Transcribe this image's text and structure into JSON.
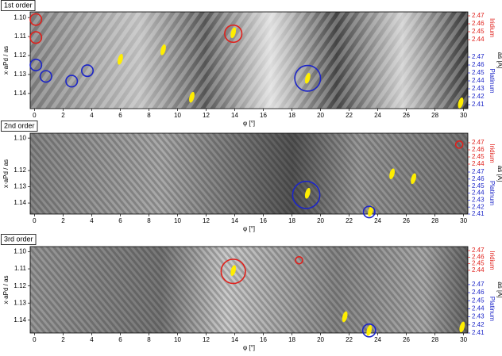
{
  "chart_data": [
    {
      "type": "heatmap",
      "title": "1st order",
      "xlabel": "φ [°]",
      "ylabel": "x·aPd / as",
      "y2label": "as [Å]",
      "xlim": [
        -0.3,
        30.3
      ],
      "xticks": [
        0,
        2,
        4,
        6,
        8,
        10,
        12,
        14,
        16,
        18,
        20,
        22,
        24,
        26,
        28,
        30
      ],
      "ylim": [
        1.148,
        1.097
      ],
      "yticks": [
        {
          "value": 1.1,
          "label": "1.10"
        },
        1.11,
        1.12,
        1.13,
        1.14
      ],
      "right_axes": [
        {
          "name": "Iridium",
          "color": "#e0201b",
          "lim": [
            2.353,
            2.475
          ],
          "ticks": [
            2.47,
            2.46,
            2.45,
            2.44
          ]
        },
        {
          "name": "Platinum",
          "color": "#1c25c8",
          "lim": [
            2.405,
            2.527
          ],
          "ticks": [
            2.47,
            2.46,
            2.45,
            2.44,
            2.43,
            2.42,
            2.41
          ]
        }
      ],
      "markers": [
        {
          "color": "#e0201b",
          "x": 0.1,
          "y": 1.101,
          "size": 0.4
        },
        {
          "color": "#e0201b",
          "x": 0.1,
          "y": 1.1105,
          "size": 0.4
        },
        {
          "color": "#e0201b",
          "x": 13.9,
          "y": 1.1085,
          "size": 0.6
        },
        {
          "color": "#1c25c8",
          "x": 0.1,
          "y": 1.125,
          "size": 0.4
        },
        {
          "color": "#1c25c8",
          "x": 0.8,
          "y": 1.131,
          "size": 0.4
        },
        {
          "color": "#1c25c8",
          "x": 2.6,
          "y": 1.1335,
          "size": 0.4
        },
        {
          "color": "#1c25c8",
          "x": 3.7,
          "y": 1.128,
          "size": 0.4
        },
        {
          "color": "#1c25c8",
          "x": 19.1,
          "y": 1.132,
          "size": 0.9
        }
      ],
      "spots": [
        {
          "x": 13.9,
          "y": 1.108
        },
        {
          "x": 19.1,
          "y": 1.132
        },
        {
          "x": 29.8,
          "y": 1.145
        },
        {
          "x": 9.0,
          "y": 1.117
        },
        {
          "x": 11.0,
          "y": 1.142
        },
        {
          "x": 6.0,
          "y": 1.122
        }
      ]
    },
    {
      "type": "heatmap",
      "title": "2nd order",
      "xlabel": "φ [°]",
      "ylabel": "x·aPd / as",
      "y2label": "as [Å]",
      "xlim": [
        -0.3,
        30.3
      ],
      "xticks": [
        0,
        2,
        4,
        6,
        8,
        10,
        12,
        14,
        16,
        18,
        20,
        22,
        24,
        26,
        28,
        30
      ],
      "ylim": [
        1.1468,
        1.097
      ],
      "yticks": [
        {
          "value": 1.1,
          "label": "1.10"
        },
        1.12,
        1.13,
        1.14
      ],
      "right_axes": [
        {
          "name": "Iridium",
          "color": "#e0201b",
          "lim": [
            2.37,
            2.4833
          ],
          "ticks": [
            2.47,
            2.46,
            2.45,
            2.44
          ]
        },
        {
          "name": "Platinum",
          "color": "#1c25c8",
          "lim": [
            2.41,
            2.5255
          ],
          "ticks": [
            2.47,
            2.46,
            2.45,
            2.44,
            2.43,
            2.42,
            2.41
          ]
        }
      ],
      "markers": [
        {
          "color": "#1c25c8",
          "x": 19.0,
          "y": 1.135,
          "size": 0.95
        },
        {
          "color": "#1c25c8",
          "x": 23.4,
          "y": 1.1455,
          "size": 0.4
        },
        {
          "color": "#e0201b",
          "x": 29.7,
          "y": 1.104,
          "size": 0.25
        }
      ],
      "spots": [
        {
          "x": 19.1,
          "y": 1.134
        },
        {
          "x": 23.5,
          "y": 1.145
        },
        {
          "x": 25.0,
          "y": 1.122
        },
        {
          "x": 26.5,
          "y": 1.125
        }
      ]
    },
    {
      "type": "heatmap",
      "title": "3rd order",
      "xlabel": "φ [°]",
      "ylabel": "x·aPd / as",
      "y2label": "as [Å]",
      "xlim": [
        -0.3,
        30.3
      ],
      "xticks": [
        0,
        2,
        4,
        6,
        8,
        10,
        12,
        14,
        16,
        18,
        20,
        22,
        24,
        26,
        28,
        30
      ],
      "ylim": [
        1.1475,
        1.097
      ],
      "yticks": [
        {
          "value": 1.1,
          "label": "1.10"
        },
        1.11,
        1.12,
        1.13,
        1.14
      ],
      "right_axes": [
        {
          "name": "Iridium",
          "color": "#e0201b",
          "lim": [
            2.345,
            2.476
          ],
          "ticks": [
            2.47,
            2.46,
            2.45,
            2.44
          ]
        },
        {
          "name": "Platinum",
          "color": "#1c25c8",
          "lim": [
            2.41,
            2.517
          ],
          "ticks": [
            2.47,
            2.46,
            2.45,
            2.44,
            2.43,
            2.42,
            2.41
          ]
        }
      ],
      "markers": [
        {
          "color": "#e0201b",
          "x": 13.9,
          "y": 1.1115,
          "size": 0.85
        },
        {
          "color": "#e0201b",
          "x": 18.5,
          "y": 1.105,
          "size": 0.25
        },
        {
          "color": "#1c25c8",
          "x": 23.4,
          "y": 1.146,
          "size": 0.45
        }
      ],
      "spots": [
        {
          "x": 13.9,
          "y": 1.111
        },
        {
          "x": 23.4,
          "y": 1.146
        },
        {
          "x": 29.9,
          "y": 1.144
        },
        {
          "x": 21.7,
          "y": 1.138
        }
      ]
    }
  ]
}
